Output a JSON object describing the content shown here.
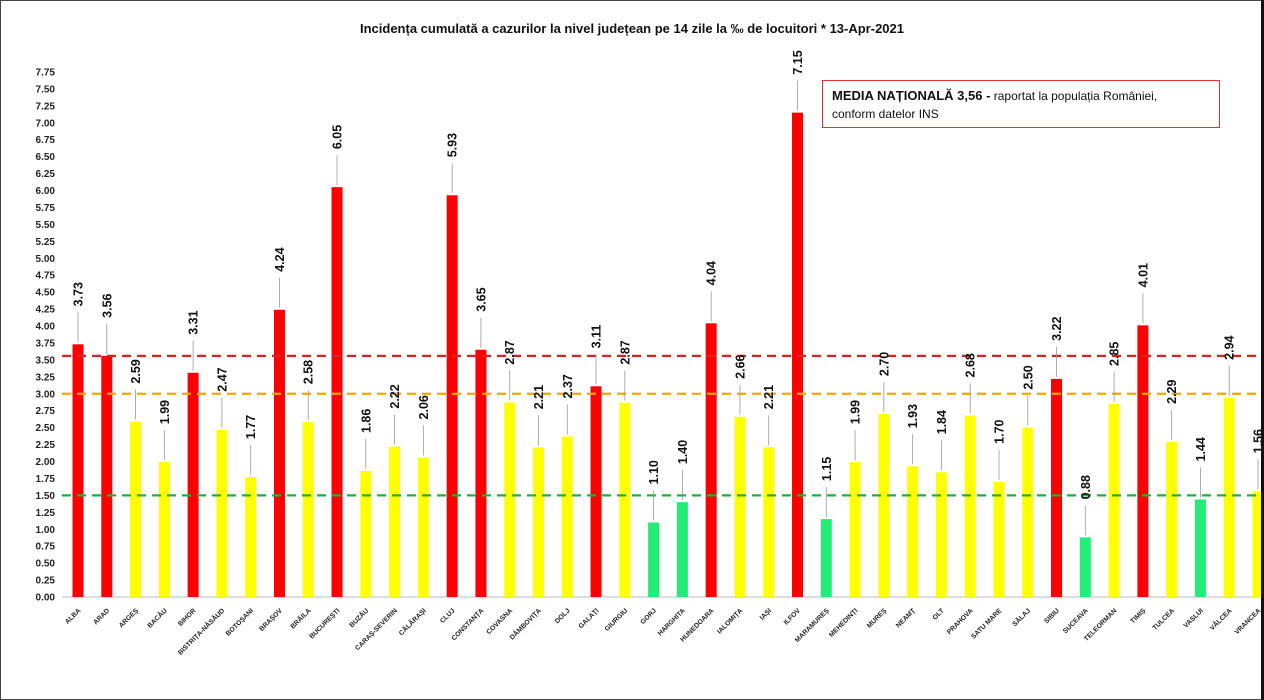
{
  "title": "Incidența cumulată a cazurilor la nivel județean pe 14 zile la ‰ de locuitori *   13-Apr-2021",
  "note": {
    "bold_text": "MEDIA NAȚIONALĂ  3,56 -",
    "rest_line1": " raportat la populația României,",
    "line2": "conform datelor INS"
  },
  "colors": {
    "red": "#ff0000",
    "yellow": "#ffff00",
    "green": "#22ee77",
    "line_red": "#e02020",
    "line_orange": "#f0a800",
    "line_green": "#20b040"
  },
  "chart_data": {
    "type": "bar",
    "title": "Incidența cumulată a cazurilor la nivel județean pe 14 zile la ‰ de locuitori *   13-Apr-2021",
    "xlabel": "",
    "ylabel": "",
    "ylim": [
      0,
      7.75
    ],
    "ytick_step": 0.25,
    "grid": false,
    "categories": [
      "ALBA",
      "ARAD",
      "ARGEȘ",
      "BACĂU",
      "BIHOR",
      "BISTRIȚA-NĂSĂUD",
      "BOTOȘANI",
      "BRAȘOV",
      "BRĂILA",
      "BUCUREȘTI",
      "BUZĂU",
      "CARAȘ-SEVERIN",
      "CĂLĂRAȘI",
      "CLUJ",
      "CONSTANȚA",
      "COVASNA",
      "DÂMBOVIȚA",
      "DOLJ",
      "GALAȚI",
      "GIURGIU",
      "GORJ",
      "HARGHITA",
      "HUNEDOARA",
      "IALOMIȚA",
      "IAȘI",
      "ILFOV",
      "MARAMUREȘ",
      "MEHEDINȚI",
      "MUREȘ",
      "NEAMȚ",
      "OLT",
      "PRAHOVA",
      "SATU MARE",
      "SĂLAJ",
      "SIBIU",
      "SUCEAVA",
      "TELEORMAN",
      "TIMIȘ",
      "TULCEA",
      "VASLUI",
      "VÂLCEA",
      "VRANCEA"
    ],
    "values": [
      3.73,
      3.56,
      2.59,
      1.99,
      3.31,
      2.47,
      1.77,
      4.24,
      2.58,
      6.05,
      1.86,
      2.22,
      2.06,
      5.93,
      3.65,
      2.87,
      2.21,
      2.37,
      3.11,
      2.87,
      1.1,
      1.4,
      4.04,
      2.66,
      2.21,
      7.15,
      1.15,
      1.99,
      2.7,
      1.93,
      1.84,
      2.68,
      1.7,
      2.5,
      3.22,
      0.88,
      2.85,
      4.01,
      2.29,
      1.44,
      2.94,
      1.56
    ],
    "value_labels": [
      "3.73",
      "3.56",
      "2.59",
      "1.99",
      "3.31",
      "2.47",
      "1.77",
      "4.24",
      "2.58",
      "6.05",
      "1.86",
      "2.22",
      "2.06",
      "5.93",
      "3.65",
      "2.87",
      "2.21",
      "2.37",
      "3.11",
      "2.87",
      "1.10",
      "1.40",
      "4.04",
      "2.66",
      "2.21",
      "7.15",
      "1.15",
      "1.99",
      "2.70",
      "1.93",
      "1.84",
      "2.68",
      "1.70",
      "2.50",
      "3.22",
      "0.88",
      "2.85",
      "4.01",
      "2.29",
      "1.44",
      "2.94",
      "1.56"
    ],
    "bar_colors": [
      "red",
      "red",
      "yellow",
      "yellow",
      "red",
      "yellow",
      "yellow",
      "red",
      "yellow",
      "red",
      "yellow",
      "yellow",
      "yellow",
      "red",
      "red",
      "yellow",
      "yellow",
      "yellow",
      "red",
      "yellow",
      "green",
      "green",
      "red",
      "yellow",
      "yellow",
      "red",
      "green",
      "yellow",
      "yellow",
      "yellow",
      "yellow",
      "yellow",
      "yellow",
      "yellow",
      "red",
      "green",
      "yellow",
      "red",
      "yellow",
      "green",
      "yellow",
      "yellow"
    ],
    "reference_lines": [
      {
        "value": 3.56,
        "color": "line_red"
      },
      {
        "value": 3.0,
        "color": "line_orange"
      },
      {
        "value": 1.5,
        "color": "line_green"
      }
    ]
  }
}
